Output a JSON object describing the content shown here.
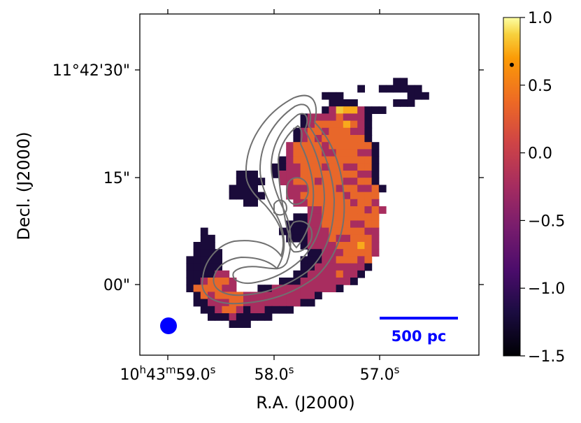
{
  "chart_data": {
    "type": "heatmap",
    "title": "",
    "xlabel": "R.A. (J2000)",
    "ylabel": "Decl. (J2000)",
    "x_ticks": [
      {
        "major": "10",
        "sup1": "h",
        "mid1": "43",
        "sup2": "m",
        "mid2": "59.0",
        "sup3": "s"
      },
      {
        "major": "58.0",
        "sup1": "s"
      },
      {
        "major": "57.0",
        "sup1": "s"
      }
    ],
    "y_ticks": [
      "11°42'30\"",
      "15\"",
      "00\""
    ],
    "colorbar": {
      "colormap": "inferno",
      "min": -1.5,
      "max": 1.0,
      "ticks": [
        "1.0",
        "0.5",
        "0.0",
        "−0.5",
        "−1.0",
        "−1.5"
      ],
      "marker_value": 0.65
    },
    "scalebar": {
      "label": "500 pc",
      "color": "#0000ff"
    },
    "beam": {
      "color": "#0000ff"
    },
    "contour_color": "#707070",
    "grid_rows": [
      "..........................................",
      "...................................",
      "...............................22..........",
      "..........................2..222222........",
      ".....................222.........222.......",
      "......................2222.....222........",
      ".....................2rCyyr222............",
      "..................2rrrrorrr2..............",
      "..................2rooooyor2..............",
      ".................2roorooorr2..............",
      ".................2roroooooo2..............",
      "................rooooroooooo2.............",
      "................roooorrooorr2.............",
      "...............2rooooooooooo2.............",
      "..............22rroooroorroo2.............",
      ".........222..2rrroooooooorr2.............",
      ".........2222..rrooorooorroo2.............",
      "........2222....rrrooooroorro2............",
      "........22222...rrooooooroooo.............",
      "..........22.....rrooooooroor.............",
      "...................rrooooooror............",
      ".................22rroooooooo.............",
      "................222rroooorroo.............",
      "....2..........2222rrrooooorr.............",
      "....22..........222rrrorrooor.............",
      "...222............2rrrroooyor.............",
      "...2222............22rrroooor.............",
      "..22222...........222rroooro..............",
      "..22222...........22rrrrrrr2..............",
      "..2222rr.........22rrrrorr2...............",
      "..22rooor......222rrrrrrr2................",
      "..2oooorr...22rrrrrrrrr2..................",
      "...2oroooorrrrrrrrrr2.....................",
      "...22rrroorrrrrrrr22......................",
      "....22roor2rr2222.........................",
      ".....222r22222............................",
      "........222...............................",
      ".........................................."
    ]
  }
}
